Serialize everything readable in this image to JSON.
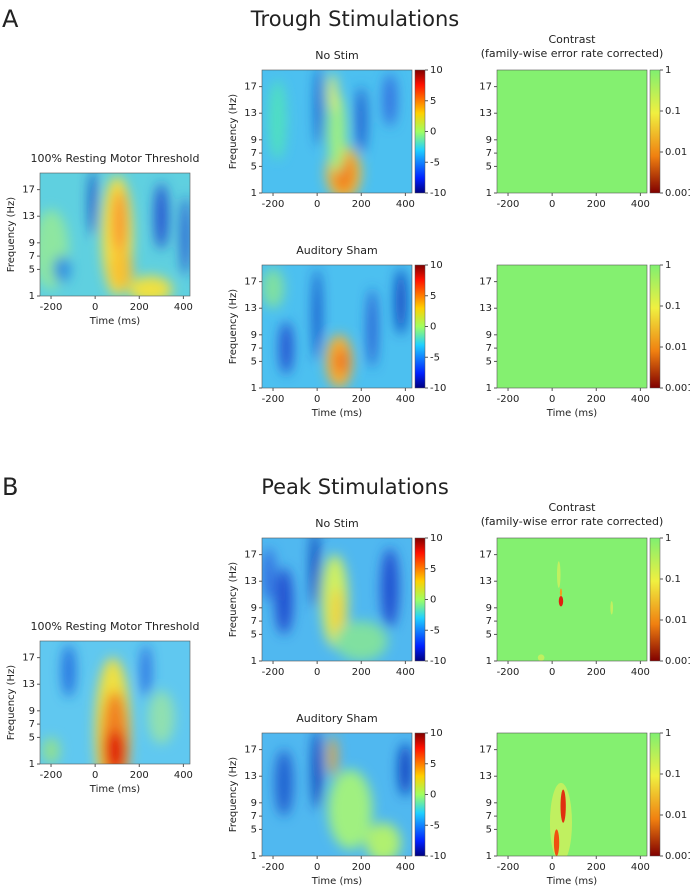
{
  "figure": {
    "axes": {
      "xlim": [
        -250,
        430
      ],
      "xticks": [
        -200,
        0,
        200,
        400
      ],
      "ylim": [
        1,
        19.5
      ],
      "yticks": [
        1,
        5,
        7,
        9,
        13,
        17
      ]
    },
    "power_colorbar": {
      "lim": [
        -10,
        10
      ],
      "ticks": [
        10,
        5,
        0,
        -5,
        -10
      ]
    },
    "p_colorbar": {
      "lim": [
        0.001,
        1
      ],
      "ticks": [
        1,
        0.1,
        0.01,
        0.001
      ],
      "scale": "log"
    },
    "panels": [
      {
        "letter": "A",
        "title": "Trough Stimulations",
        "plots": [
          {
            "title": "100% Resting Motor Threshold",
            "xlabel": "Time (ms)",
            "ylabel": "Frequency (Hz)"
          },
          {
            "title": "No Stim",
            "ylabel": "Frequency (Hz)",
            "colorbar": "power"
          },
          {
            "title": "Contrast",
            "subtitle": "(family-wise error rate corrected)",
            "colorbar": "p"
          },
          {
            "title": "Auditory Sham",
            "xlabel": "Time (ms)",
            "ylabel": "Frequency (Hz)",
            "colorbar": "power"
          },
          {
            "xlabel": "Time (ms)",
            "colorbar": "p"
          }
        ]
      },
      {
        "letter": "B",
        "title": "Peak Stimulations",
        "plots": [
          {
            "title": "100% Resting Motor Threshold",
            "xlabel": "Time (ms)",
            "ylabel": "Frequency (Hz)"
          },
          {
            "title": "No Stim",
            "ylabel": "Frequency (Hz)",
            "colorbar": "power"
          },
          {
            "title": "Contrast",
            "subtitle": "(family-wise error rate corrected)",
            "colorbar": "p"
          },
          {
            "title": "Auditory Sham",
            "xlabel": "Time (ms)",
            "ylabel": "Frequency (Hz)",
            "colorbar": "power"
          },
          {
            "xlabel": "Time (ms)",
            "colorbar": "p"
          }
        ]
      }
    ]
  }
}
